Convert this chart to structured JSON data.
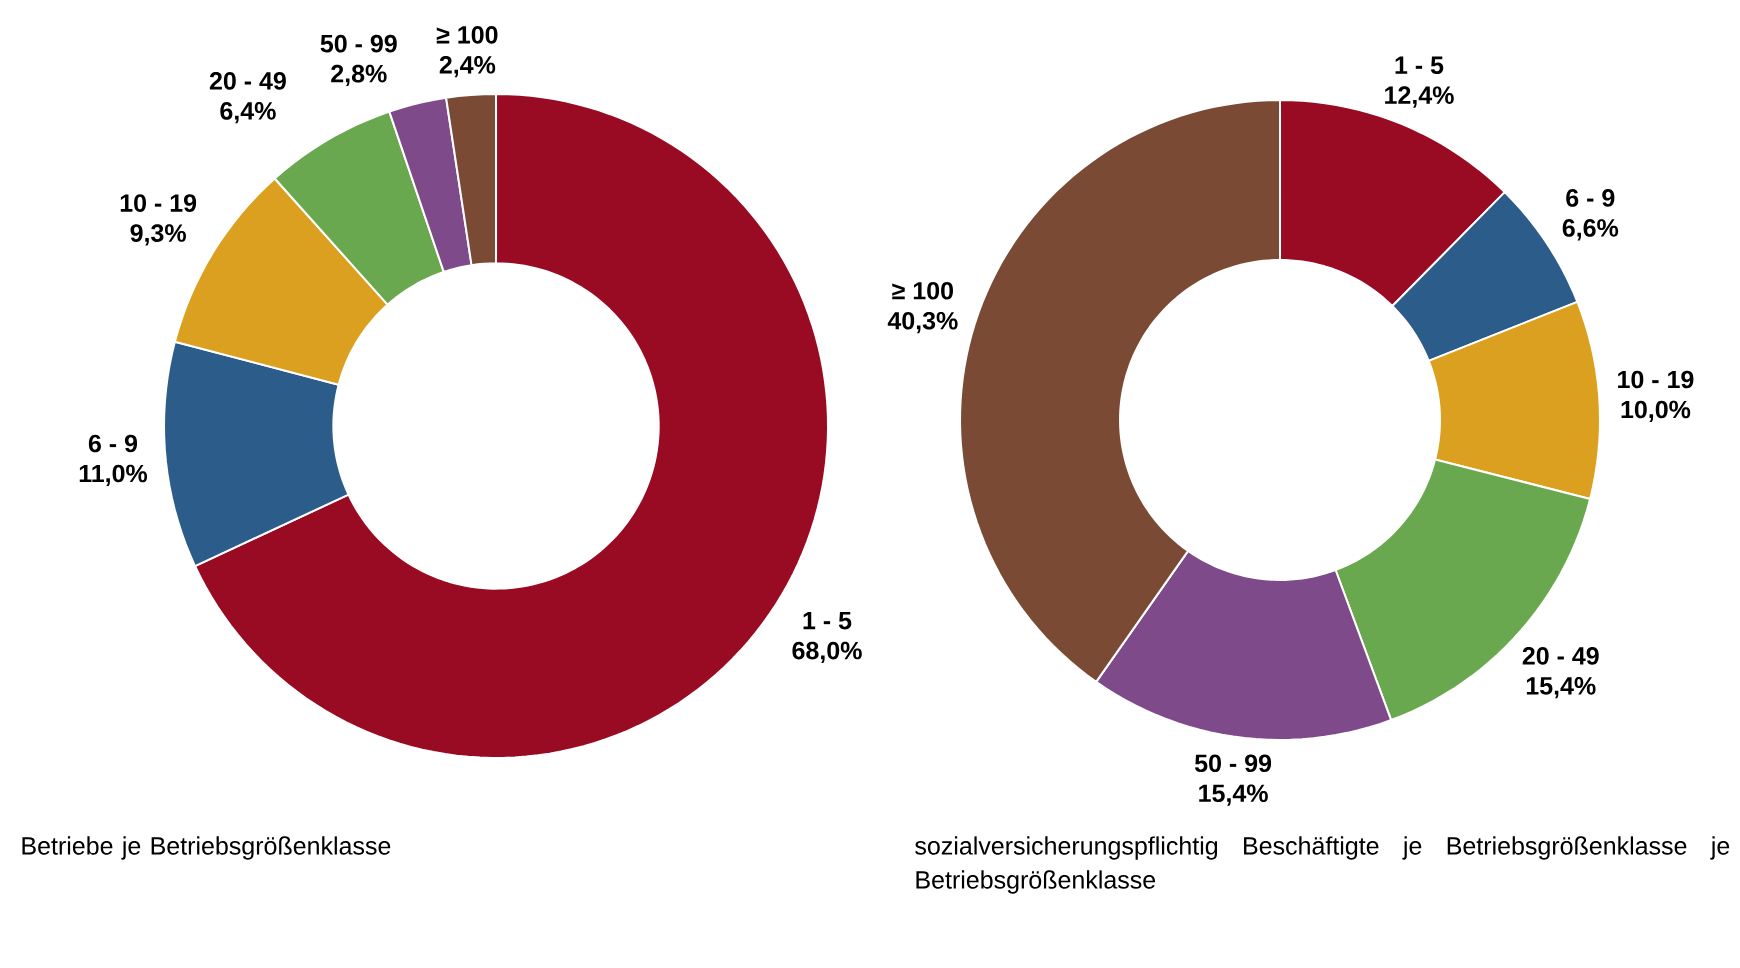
{
  "chart_data": [
    {
      "type": "donut",
      "title": "Betriebe je Betriebsgrößenklasse",
      "categories": [
        "1 - 5",
        "6 - 9",
        "10 - 19",
        "20 - 49",
        "50 - 99",
        "≥ 100"
      ],
      "values": [
        68.0,
        11.0,
        9.3,
        6.4,
        2.8,
        2.4
      ],
      "value_labels": [
        "68,0%",
        "11,0%",
        "9,3%",
        "6,4%",
        "2,8%",
        "2,4%"
      ],
      "colors": [
        "#990a23",
        "#2b5c8a",
        "#dba01f",
        "#6aa84f",
        "#7f4a8a",
        "#7a4a35"
      ]
    },
    {
      "type": "donut",
      "title": "sozialversicherungspflichtig Beschäftigte je Betriebsgrößenklasse je Betriebsgrößenklasse",
      "categories": [
        "1 - 5",
        "6 - 9",
        "10 - 19",
        "20 - 49",
        "50 - 99",
        "≥ 100"
      ],
      "values": [
        12.4,
        6.6,
        10.0,
        15.4,
        15.4,
        40.3
      ],
      "value_labels": [
        "12,4%",
        "6,6%",
        "10,0%",
        "15,4%",
        "15,4%",
        "40,3%"
      ],
      "colors": [
        "#990a23",
        "#2b5c8a",
        "#dba01f",
        "#6aa84f",
        "#7f4a8a",
        "#7a4a35"
      ]
    }
  ]
}
